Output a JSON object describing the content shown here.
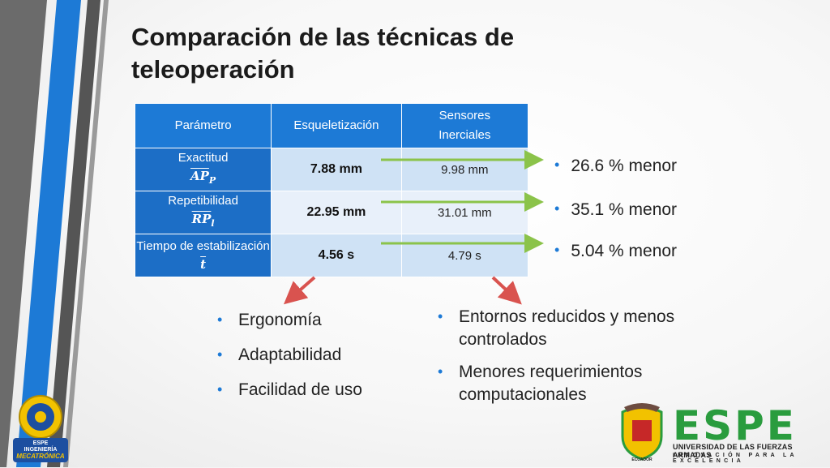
{
  "title": "Comparación de las técnicas de teleoperación",
  "table": {
    "headers": [
      "Parámetro",
      "Esqueletización",
      "Sensores Inerciales"
    ],
    "rows": [
      {
        "param": "Exactitud",
        "symbol": "AP",
        "sub": "P",
        "esq": "7.88 mm",
        "sens": "9.98 mm"
      },
      {
        "param": "Repetibilidad",
        "symbol": "RP",
        "sub": "l",
        "esq": "22.95 mm",
        "sens": "31.01 mm"
      },
      {
        "param": "Tiempo de estabilización",
        "symbol": "t",
        "sub": "",
        "esq": "4.56 s",
        "sens": "4.79 s"
      }
    ]
  },
  "results": [
    "26.6 % menor",
    "35.1 % menor",
    "5.04 % menor"
  ],
  "left_list": [
    "Ergonomía",
    "Adaptabilidad",
    "Facilidad de uso"
  ],
  "right_list": [
    "Entornos reducidos y menos controlados",
    "Menores requerimientos computacionales"
  ],
  "logos": {
    "left_line1": "ESPE",
    "left_line2": "INGENIERÍA",
    "left_line3": "MECATRÓNICA",
    "espe_word": "ESPE",
    "espe_line1": "UNIVERSIDAD DE LAS FUERZAS ARMADAS",
    "espe_line2": "INNOVACIÓN PARA LA EXCELENCIA",
    "shield_text": "ECUADOR"
  },
  "colors": {
    "accent": "#1d7ad6",
    "arrow_green": "#8bc34a",
    "arrow_red": "#d9534f",
    "espe_green": "#2a9c3e"
  }
}
